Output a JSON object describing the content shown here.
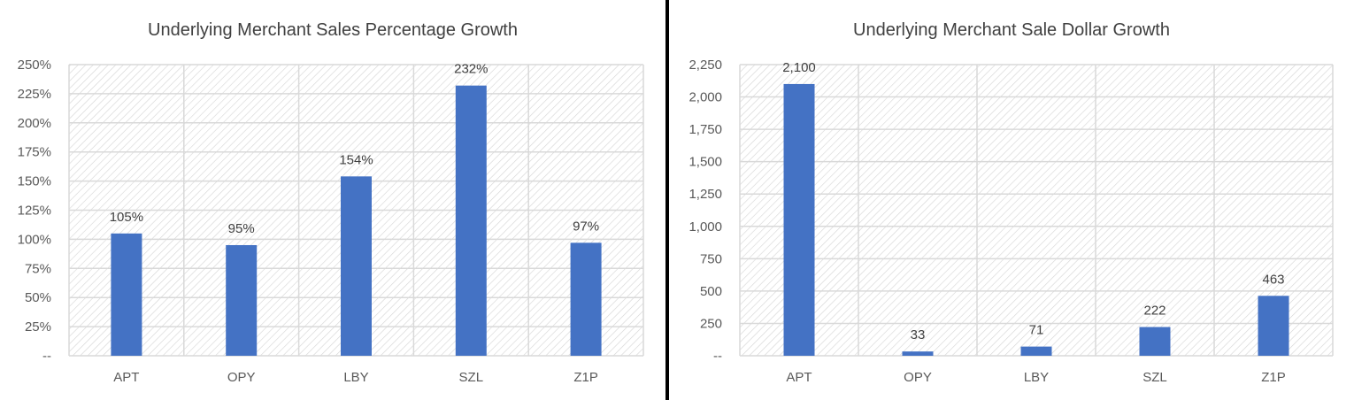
{
  "chart_data": [
    {
      "type": "bar",
      "title": "Underlying Merchant Sales Percentage Growth",
      "xlabel": "",
      "ylabel": "",
      "categories": [
        "APT",
        "OPY",
        "LBY",
        "SZL",
        "Z1P"
      ],
      "values": [
        105,
        95,
        154,
        232,
        97
      ],
      "data_labels": [
        "105%",
        "95%",
        "154%",
        "232%",
        "97%"
      ],
      "ylim": [
        0,
        250
      ],
      "yticks": [
        0,
        25,
        50,
        75,
        100,
        125,
        150,
        175,
        200,
        225,
        250
      ],
      "ytick_labels": [
        "--",
        "25%",
        "50%",
        "75%",
        "100%",
        "125%",
        "150%",
        "175%",
        "200%",
        "225%",
        "250%"
      ],
      "grid": true,
      "legend": "none",
      "bar_color": "#4472C4"
    },
    {
      "type": "bar",
      "title": "Underlying Merchant Sale Dollar Growth",
      "xlabel": "",
      "ylabel": "",
      "categories": [
        "APT",
        "OPY",
        "LBY",
        "SZL",
        "Z1P"
      ],
      "values": [
        2100,
        33,
        71,
        222,
        463
      ],
      "data_labels": [
        "2,100",
        "33",
        "71",
        "222",
        "463"
      ],
      "ylim": [
        0,
        2250
      ],
      "yticks": [
        0,
        250,
        500,
        750,
        1000,
        1250,
        1500,
        1750,
        2000,
        2250
      ],
      "ytick_labels": [
        "--",
        "250",
        "500",
        "750",
        "1,000",
        "1,250",
        "1,500",
        "1,750",
        "2,000",
        "2,250"
      ],
      "grid": true,
      "legend": "none",
      "bar_color": "#4472C4"
    }
  ],
  "colors": {
    "bar": "#4472C4",
    "gridline": "#d9d9d9",
    "divider": "#000000"
  }
}
